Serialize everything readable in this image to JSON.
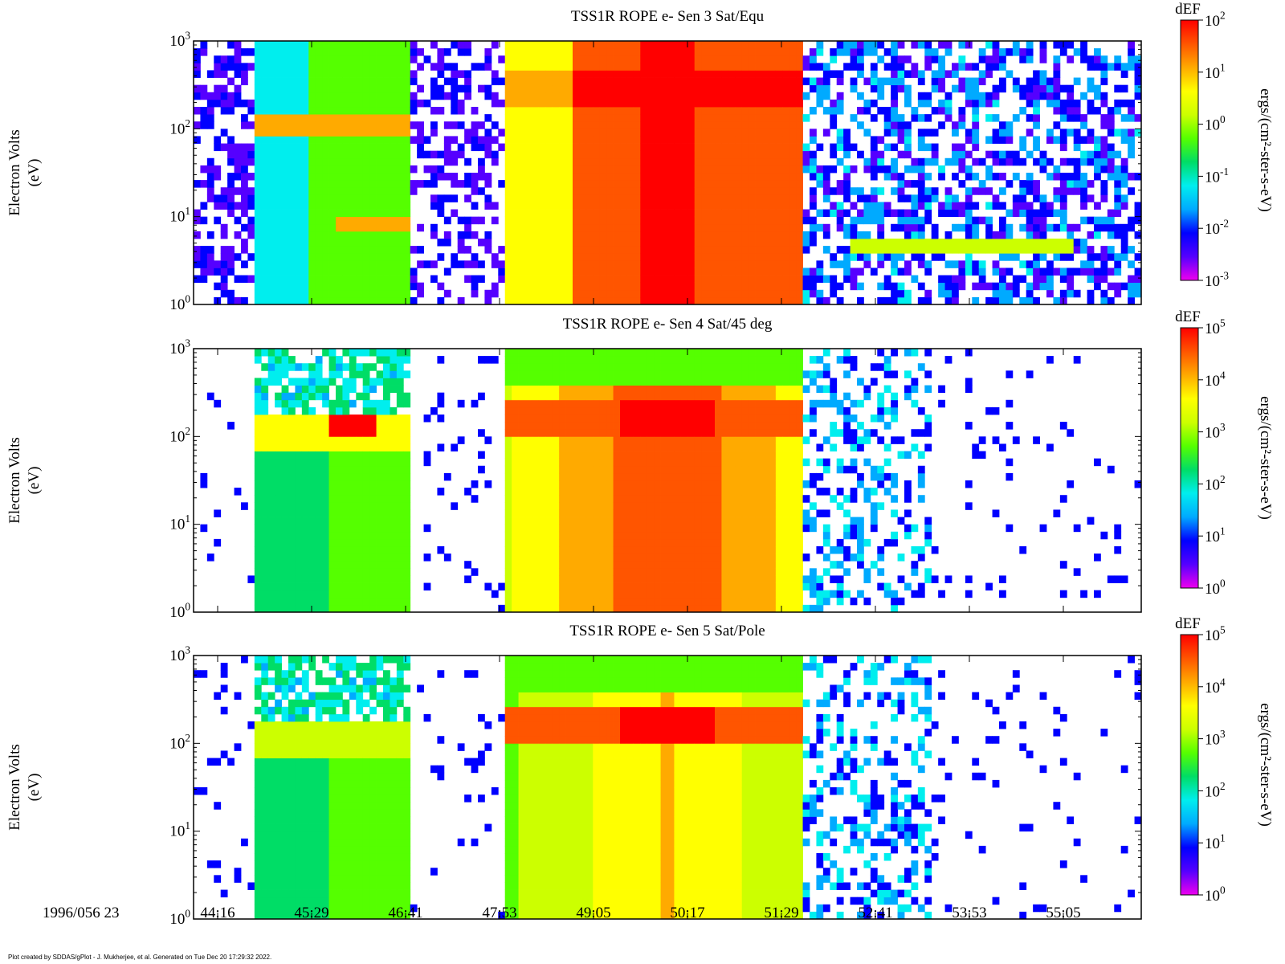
{
  "footer_text": "Plot created by SDDAS/gPlot - J. Mukherjee, et al.  Generated on Tue Dec 20 17:29:32 2022.",
  "chart_data": {
    "type": "heatmap",
    "time_prefix": "1996/056 23",
    "x_tick_labels": [
      "44:16",
      "45:29",
      "46:41",
      "47:53",
      "49:05",
      "50:17",
      "51:29",
      "52:41",
      "53:53",
      "55:05"
    ],
    "x_range_seconds_of_hour": [
      2625,
      3381
    ],
    "y_scale": "log",
    "y_range": [
      1,
      1000
    ],
    "y_tick_labels": [
      {
        "base": "10",
        "exp": "0"
      },
      {
        "base": "10",
        "exp": "1"
      },
      {
        "base": "10",
        "exp": "2"
      },
      {
        "base": "10",
        "exp": "3"
      }
    ],
    "ylabel_line1": "Electron Volts",
    "ylabel_line2": "(eV)",
    "colorbar_label": "ergs/(cm²-ster-s-eV)",
    "colorbar_title": "dEF",
    "colorscale": [
      "#ee00ee",
      "#5500ff",
      "#0000ff",
      "#00aaff",
      "#00eeee",
      "#00dd66",
      "#55ff00",
      "#ccff00",
      "#ffff00",
      "#ffaa00",
      "#ff5500",
      "#ff0000"
    ],
    "panels": [
      {
        "title": "TSS1R ROPE e- Sen 3 Sat/Equ",
        "colorbar_ticks": [
          {
            "base": "10",
            "exp": "2"
          },
          {
            "base": "10",
            "exp": "1"
          },
          {
            "base": "10",
            "exp": "0"
          },
          {
            "base": "10",
            "exp": "-1"
          },
          {
            "base": "10",
            "exp": "-2"
          },
          {
            "base": "10",
            "exp": "-3"
          }
        ],
        "colorbar_exp_range": [
          -3,
          2
        ]
      },
      {
        "title": "TSS1R ROPE e- Sen 4 Sat/45 deg",
        "colorbar_ticks": [
          {
            "base": "10",
            "exp": "5"
          },
          {
            "base": "10",
            "exp": "4"
          },
          {
            "base": "10",
            "exp": "3"
          },
          {
            "base": "10",
            "exp": "2"
          },
          {
            "base": "10",
            "exp": "1"
          },
          {
            "base": "10",
            "exp": "0"
          }
        ],
        "colorbar_exp_range": [
          0,
          5
        ]
      },
      {
        "title": "TSS1R ROPE e- Sen 5 Sat/Pole",
        "colorbar_ticks": [
          {
            "base": "10",
            "exp": "5"
          },
          {
            "base": "10",
            "exp": "4"
          },
          {
            "base": "10",
            "exp": "3"
          },
          {
            "base": "10",
            "exp": "2"
          },
          {
            "base": "10",
            "exp": "1"
          },
          {
            "base": "10",
            "exp": "0"
          }
        ],
        "colorbar_exp_range": [
          0,
          5
        ]
      }
    ]
  }
}
